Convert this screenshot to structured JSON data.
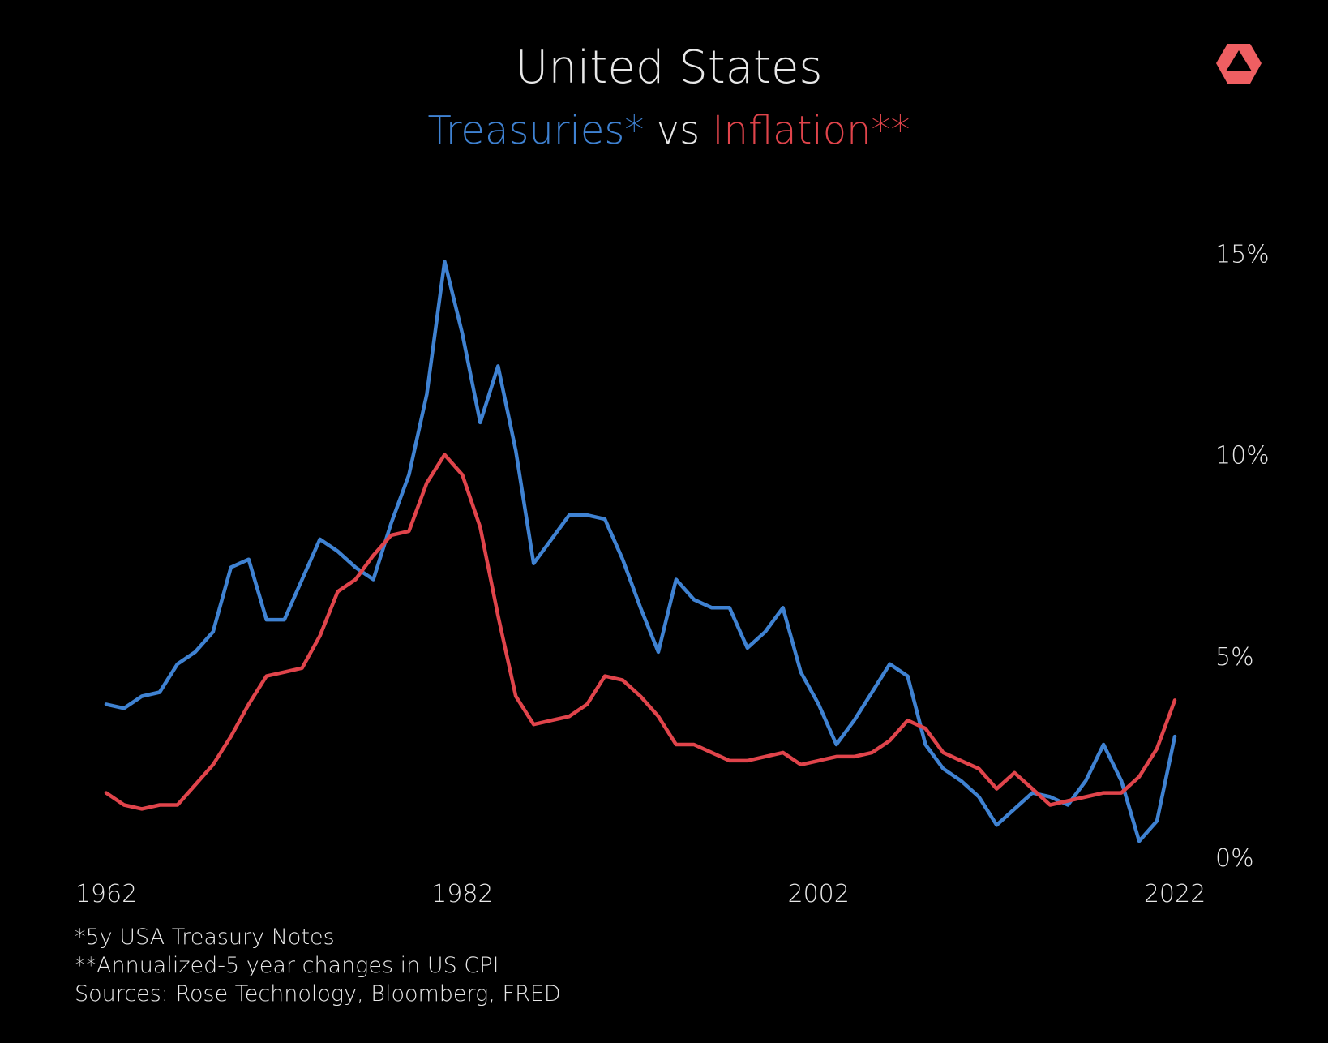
{
  "chart_data": {
    "type": "line",
    "title": "United States",
    "subtitle": [
      "Treasuries*",
      "vs",
      "Inflation**"
    ],
    "subtitle_colors": [
      "#3f82d2",
      "#e8e8e8",
      "#e0444b"
    ],
    "footnotes": [
      "*5y USA Treasury Notes",
      "**Annualized-5 year changes in US CPI",
      "Sources: Rose Technology, Bloomberg, FRED"
    ],
    "x": [
      1962,
      1963,
      1964,
      1965,
      1966,
      1967,
      1968,
      1969,
      1970,
      1971,
      1972,
      1973,
      1974,
      1975,
      1976,
      1977,
      1978,
      1979,
      1980,
      1981,
      1982,
      1983,
      1984,
      1985,
      1986,
      1987,
      1988,
      1989,
      1990,
      1991,
      1992,
      1993,
      1994,
      1995,
      1996,
      1997,
      1998,
      1999,
      2000,
      2001,
      2002,
      2003,
      2004,
      2005,
      2006,
      2007,
      2008,
      2009,
      2010,
      2011,
      2012,
      2013,
      2014,
      2015,
      2016,
      2017,
      2018,
      2019,
      2020,
      2021,
      2022
    ],
    "series": [
      {
        "name": "Treasuries*",
        "color": "#3f82d2",
        "values": [
          3.8,
          3.7,
          4.0,
          4.1,
          4.8,
          5.1,
          5.6,
          7.2,
          7.4,
          5.9,
          5.9,
          6.9,
          7.9,
          7.6,
          7.2,
          6.9,
          8.3,
          9.5,
          11.5,
          14.8,
          13.0,
          10.8,
          12.2,
          10.1,
          7.3,
          7.9,
          8.5,
          8.5,
          8.4,
          7.4,
          6.2,
          5.1,
          6.9,
          6.4,
          6.2,
          6.2,
          5.2,
          5.6,
          6.2,
          4.6,
          3.8,
          2.8,
          3.4,
          4.1,
          4.8,
          4.5,
          2.8,
          2.2,
          1.9,
          1.5,
          0.8,
          1.2,
          1.6,
          1.5,
          1.3,
          1.9,
          2.8,
          1.9,
          0.4,
          0.9,
          3.0
        ]
      },
      {
        "name": "Inflation**",
        "color": "#e0444b",
        "values": [
          1.6,
          1.3,
          1.2,
          1.3,
          1.3,
          1.8,
          2.3,
          3.0,
          3.8,
          4.5,
          4.6,
          4.7,
          5.5,
          6.6,
          6.9,
          7.5,
          8.0,
          8.1,
          9.3,
          10.0,
          9.5,
          8.2,
          6.0,
          4.0,
          3.3,
          3.4,
          3.5,
          3.8,
          4.5,
          4.4,
          4.0,
          3.5,
          2.8,
          2.8,
          2.6,
          2.4,
          2.4,
          2.5,
          2.6,
          2.3,
          2.4,
          2.5,
          2.5,
          2.6,
          2.9,
          3.4,
          3.2,
          2.6,
          2.4,
          2.2,
          1.7,
          2.1,
          1.7,
          1.3,
          1.4,
          1.5,
          1.6,
          1.6,
          2.0,
          2.7,
          3.9
        ]
      }
    ],
    "xlim": [
      1962,
      2022
    ],
    "xticks": [
      1962,
      1982,
      2002,
      2022
    ],
    "ylim": [
      0,
      16.5
    ],
    "yticks": [
      {
        "value": 0,
        "label": "0%"
      },
      {
        "value": 5,
        "label": "5%"
      },
      {
        "value": 10,
        "label": "10%"
      },
      {
        "value": 15,
        "label": "15%"
      }
    ],
    "grid": false
  }
}
